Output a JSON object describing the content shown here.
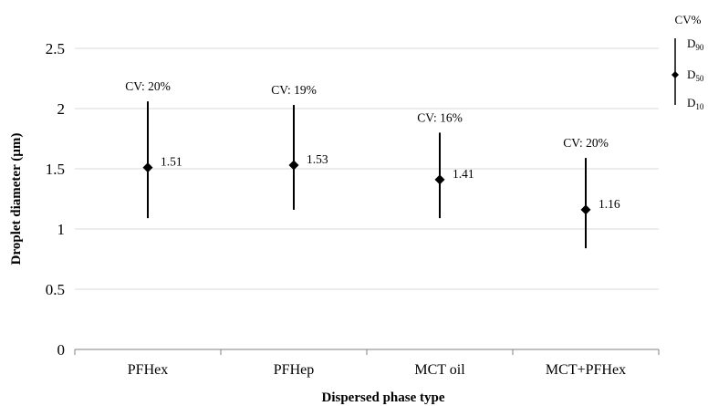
{
  "chart_data": {
    "type": "scatter",
    "categories": [
      "PFHex",
      "PFHep",
      "MCT oil",
      "MCT+PFHex"
    ],
    "series": [
      {
        "d10": [
          1.09,
          1.16,
          1.09,
          0.84
        ],
        "d50": [
          1.51,
          1.53,
          1.41,
          1.16
        ],
        "d90": [
          2.06,
          2.03,
          1.8,
          1.59
        ]
      }
    ],
    "value_labels": [
      "1.51",
      "1.53",
      "1.41",
      "1.16"
    ],
    "cv_labels": [
      "CV: 20%",
      "CV: 19%",
      "CV: 16%",
      "CV: 20%"
    ],
    "xlabel": "Dispersed phase type",
    "ylabel": "Droplet diameter (µm)",
    "ylim": [
      0,
      2.5
    ],
    "yticks": [
      "0",
      "0.5",
      "1",
      "1.5",
      "2",
      "2.5"
    ],
    "grid": true,
    "legend": {
      "position": "top-right",
      "title": "CV%",
      "d90": "D",
      "d90_sub": "90",
      "d50": "D",
      "d50_sub": "50",
      "d10": "D",
      "d10_sub": "10"
    },
    "colors": {
      "marker": "#000000",
      "grid": "#d9d9d9",
      "axis": "#808080"
    }
  }
}
